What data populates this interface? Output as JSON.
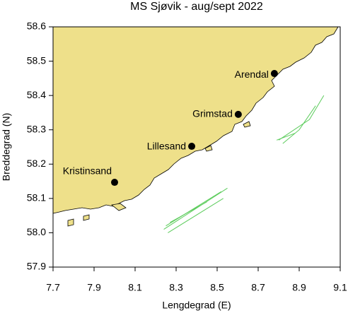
{
  "chart_data": {
    "type": "map",
    "title": "MS Sjøvik - aug/sept 2022",
    "x_label": "Lengdegrad (E)",
    "y_label": "Breddegrad (N)",
    "xlim": [
      7.7,
      9.1
    ],
    "ylim": [
      57.9,
      58.6
    ],
    "xticks": [
      7.7,
      7.9,
      8.1,
      8.3,
      8.5,
      8.7,
      8.9,
      9.1
    ],
    "yticks": [
      57.9,
      {
        "value": 58,
        "label": "58.0"
      },
      58.1,
      58.2,
      58.3,
      58.4,
      58.5,
      58.6
    ],
    "land_color": "#eee08a",
    "cities": {
      "names": [
        "Arendal",
        "Grimstad",
        "Lillesand",
        "Kristinsand"
      ],
      "x": [
        8.779,
        8.603,
        8.376,
        8.0
      ],
      "y": [
        58.464,
        58.345,
        58.252,
        58.147
      ]
    },
    "track_color": "#5ccc5c",
    "tracks": [
      {
        "x": [
          8.25,
          8.52
        ],
        "y": [
          58.02,
          58.12
        ]
      },
      {
        "x": [
          8.24,
          8.55
        ],
        "y": [
          58.01,
          58.13
        ]
      },
      {
        "x": [
          8.26,
          8.53
        ],
        "y": [
          58.0,
          58.1
        ]
      },
      {
        "x": [
          8.27,
          8.45
        ],
        "y": [
          58.03,
          58.09
        ]
      },
      {
        "x": [
          8.8,
          8.95,
          9.02
        ],
        "y": [
          58.27,
          58.33,
          58.4
        ]
      },
      {
        "x": [
          8.82,
          8.9,
          8.98
        ],
        "y": [
          58.26,
          58.3,
          58.37
        ]
      },
      {
        "x": [
          8.79,
          8.88
        ],
        "y": [
          58.27,
          58.29
        ]
      }
    ]
  }
}
